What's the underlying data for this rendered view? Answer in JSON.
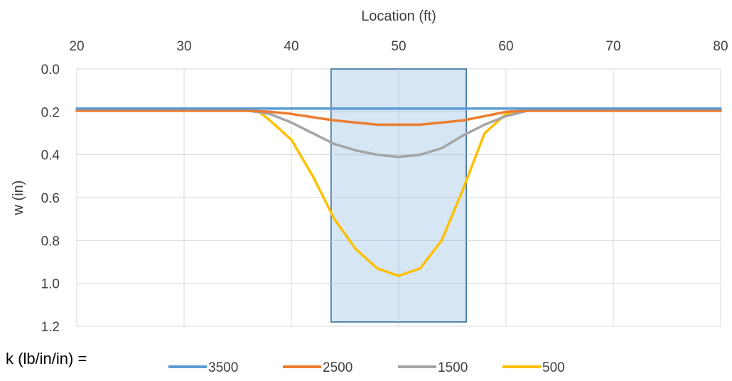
{
  "chart_data": {
    "type": "line",
    "xlabel": "Location (ft)",
    "ylabel": "w (in)",
    "xlim": [
      20,
      80
    ],
    "ylim": [
      0.0,
      1.2
    ],
    "y_inverted": true,
    "x_axis_position": "top",
    "x_ticks": [
      "20",
      "30",
      "40",
      "50",
      "60",
      "70",
      "80"
    ],
    "y_ticks": [
      "0.0",
      "0.2",
      "0.4",
      "0.6",
      "0.8",
      "1.0",
      "1.2"
    ],
    "grid": true,
    "legend_title": "k (lb/in/in) =",
    "legend_position": "bottom",
    "shaded_region": {
      "x_start": 43.7,
      "x_end": 56.3,
      "y_start": 0.0,
      "y_end": 1.18,
      "fill": "#d3e3f3",
      "stroke": "#2f6595"
    },
    "series": [
      {
        "name": "3500",
        "color": "#5b9bd5",
        "x": [
          20,
          80
        ],
        "y": [
          0.185,
          0.185
        ]
      },
      {
        "name": "2500",
        "color": "#ed7d31",
        "x": [
          20,
          36,
          38,
          40,
          42,
          44,
          46,
          48,
          50,
          52,
          54,
          56,
          58,
          60,
          62,
          64,
          80
        ],
        "y": [
          0.195,
          0.195,
          0.2,
          0.21,
          0.225,
          0.24,
          0.25,
          0.26,
          0.26,
          0.26,
          0.25,
          0.24,
          0.22,
          0.2,
          0.195,
          0.195,
          0.195
        ]
      },
      {
        "name": "1500",
        "color": "#a5a5a5",
        "x": [
          20,
          36,
          38,
          40,
          42,
          44,
          46,
          48,
          50,
          52,
          54,
          56,
          58,
          60,
          62,
          64,
          80
        ],
        "y": [
          0.195,
          0.195,
          0.21,
          0.25,
          0.3,
          0.35,
          0.38,
          0.4,
          0.41,
          0.4,
          0.37,
          0.31,
          0.26,
          0.22,
          0.195,
          0.195,
          0.195
        ]
      },
      {
        "name": "500",
        "color": "#ffc000",
        "x": [
          20,
          36,
          37,
          38,
          40,
          42,
          44,
          46,
          48,
          50,
          52,
          54,
          56,
          58,
          60,
          62,
          63,
          80
        ],
        "y": [
          0.195,
          0.195,
          0.2,
          0.24,
          0.33,
          0.5,
          0.7,
          0.84,
          0.93,
          0.965,
          0.93,
          0.8,
          0.56,
          0.3,
          0.21,
          0.195,
          0.195,
          0.195
        ]
      }
    ]
  }
}
